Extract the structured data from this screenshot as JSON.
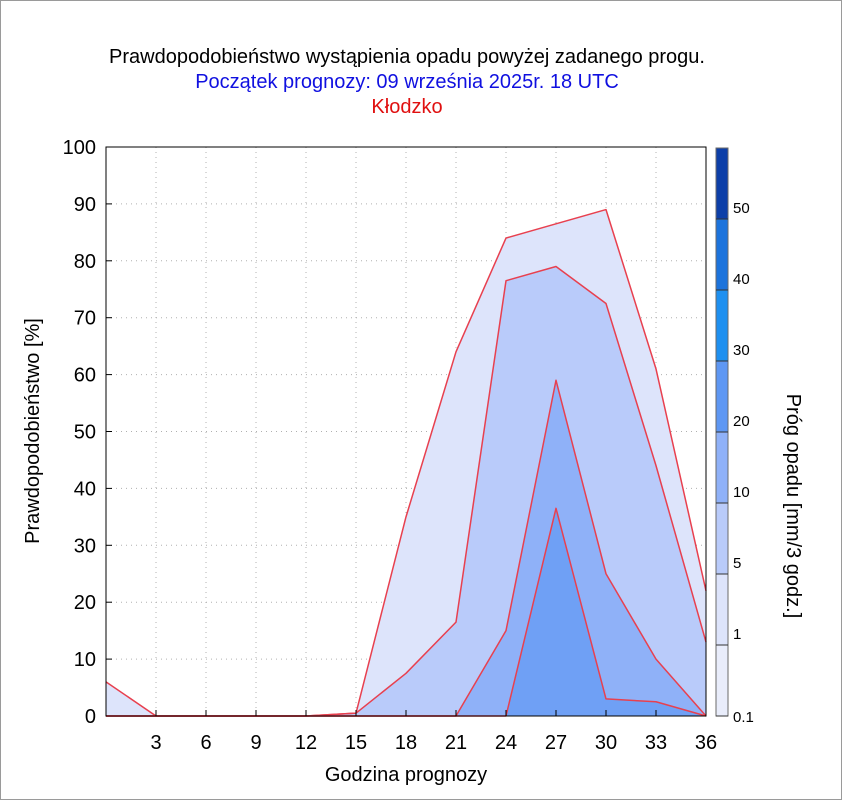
{
  "header": {
    "title": "Prawdopodobieństwo wystąpienia opadu powyżej zadanego progu.",
    "subtitle": "Początek prognozy: 09 września 2025r. 18 UTC",
    "station": "Kłodzko"
  },
  "colors": {
    "title": "#000000",
    "subtitle": "#1010e0",
    "station": "#e01010",
    "series_line": "#e8404f",
    "grid": "#b0b0b0"
  },
  "chart_data": {
    "type": "area",
    "title": "Prawdopodobieństwo wystąpienia opadu powyżej zadanego progu.",
    "xlabel": "Godzina prognozy",
    "ylabel": "Prawdopodobieństwo [%]",
    "xlim": [
      0,
      36
    ],
    "ylim": [
      0,
      100
    ],
    "grid": true,
    "x": [
      0,
      3,
      6,
      9,
      12,
      15,
      18,
      21,
      24,
      27,
      30,
      33,
      36
    ],
    "x_ticks": [
      3,
      6,
      9,
      12,
      15,
      18,
      21,
      24,
      27,
      30,
      33,
      36
    ],
    "y_ticks": [
      0,
      10,
      20,
      30,
      40,
      50,
      60,
      70,
      80,
      90,
      100
    ],
    "series": [
      {
        "threshold": 0.1,
        "color": "#dde4fb",
        "values": [
          6,
          0,
          0,
          0,
          0,
          0.5,
          35,
          64,
          84,
          86.5,
          89,
          61,
          22
        ]
      },
      {
        "threshold": 1,
        "color": "#b9cbfa",
        "values": [
          0,
          0,
          0,
          0,
          0,
          0.5,
          7.5,
          16.5,
          76.5,
          79,
          72.5,
          44,
          13
        ]
      },
      {
        "threshold": 5,
        "color": "#8fb1f8",
        "values": [
          0,
          0,
          0,
          0,
          0,
          0,
          0,
          0,
          15,
          59,
          25,
          10,
          0
        ]
      },
      {
        "threshold": 10,
        "color": "#6fa0f5",
        "values": [
          0,
          0,
          0,
          0,
          0,
          0,
          0,
          0,
          0,
          36.5,
          3,
          2.5,
          0
        ]
      }
    ],
    "colorbar": {
      "label": "Próg opadu [mm/3 godz.]",
      "tick_labels": [
        "0.1",
        "1",
        "5",
        "10",
        "20",
        "30",
        "40",
        "50"
      ],
      "colors": [
        "#e9edfb",
        "#dde4fb",
        "#b9cbfa",
        "#8fb1f8",
        "#5e97f3",
        "#1e90f0",
        "#1c73dc",
        "#1558c8",
        "#0d3fa8"
      ]
    }
  }
}
